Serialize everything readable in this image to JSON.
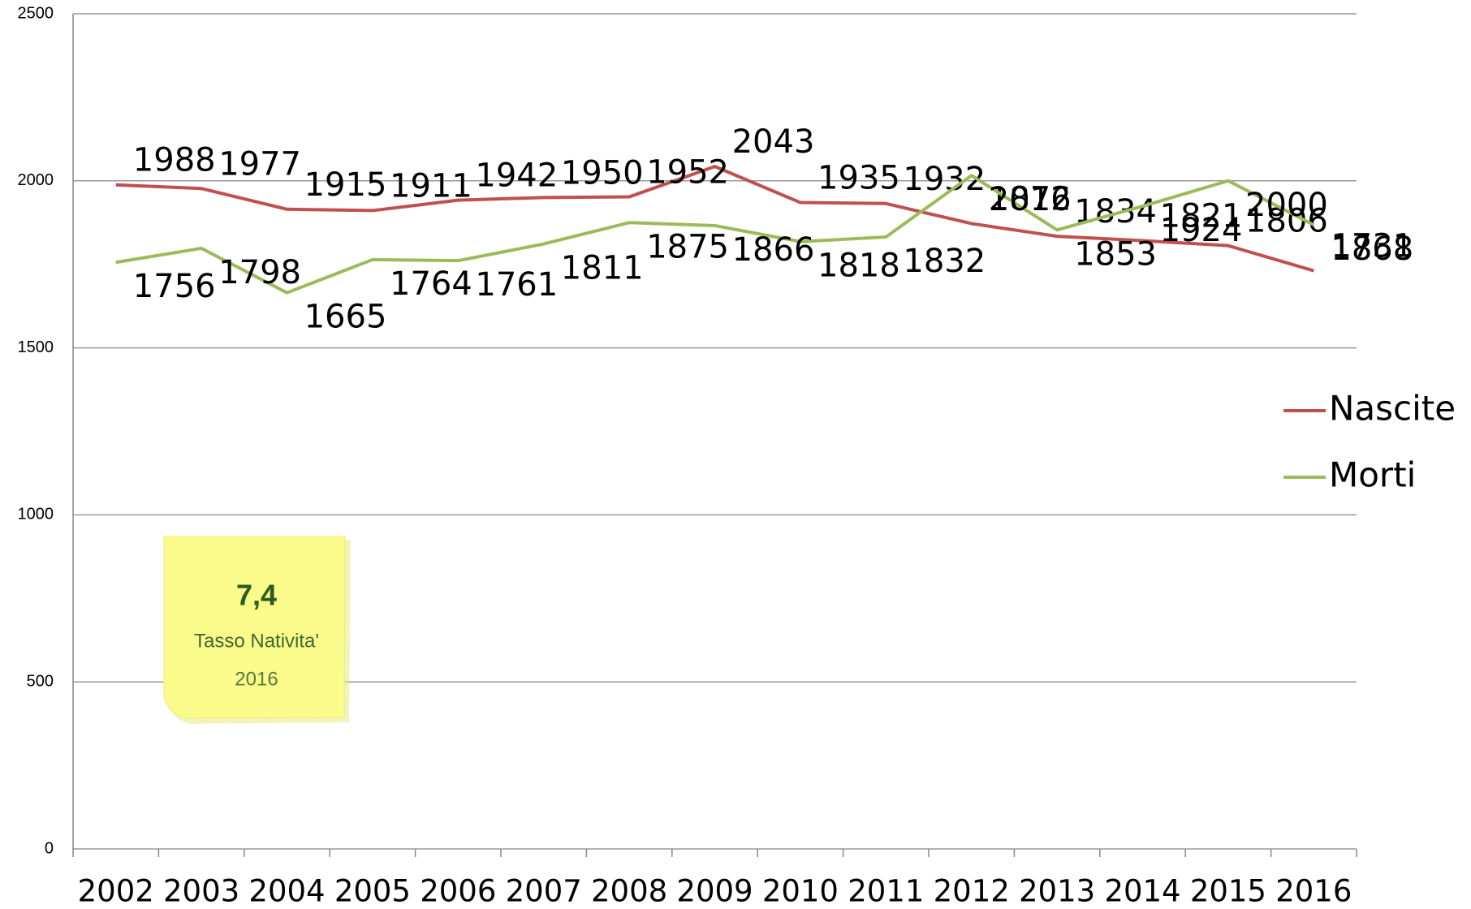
{
  "chart_data": {
    "type": "line",
    "categories": [
      "2002",
      "2003",
      "2004",
      "2005",
      "2006",
      "2007",
      "2008",
      "2009",
      "2010",
      "2011",
      "2012",
      "2013",
      "2014",
      "2015",
      "2016"
    ],
    "series": [
      {
        "name": "Nascite",
        "color": "#c0504d",
        "values": [
          1988,
          1977,
          1915,
          1911,
          1942,
          1950,
          1952,
          2043,
          1935,
          1932,
          1872,
          1834,
          1821,
          1806,
          1731
        ]
      },
      {
        "name": "Morti",
        "color": "#9bbb59",
        "values": [
          1756,
          1798,
          1665,
          1764,
          1761,
          1811,
          1875,
          1866,
          1818,
          1832,
          2016,
          1853,
          1924,
          2000,
          1868
        ]
      }
    ],
    "ylim": [
      0,
      2500
    ],
    "yticks": [
      0,
      500,
      1000,
      1500,
      2000,
      2500
    ],
    "grid": true,
    "legend": "right",
    "note": {
      "value": "7,4",
      "label": "Tasso Nativita'",
      "year": "2016"
    }
  }
}
